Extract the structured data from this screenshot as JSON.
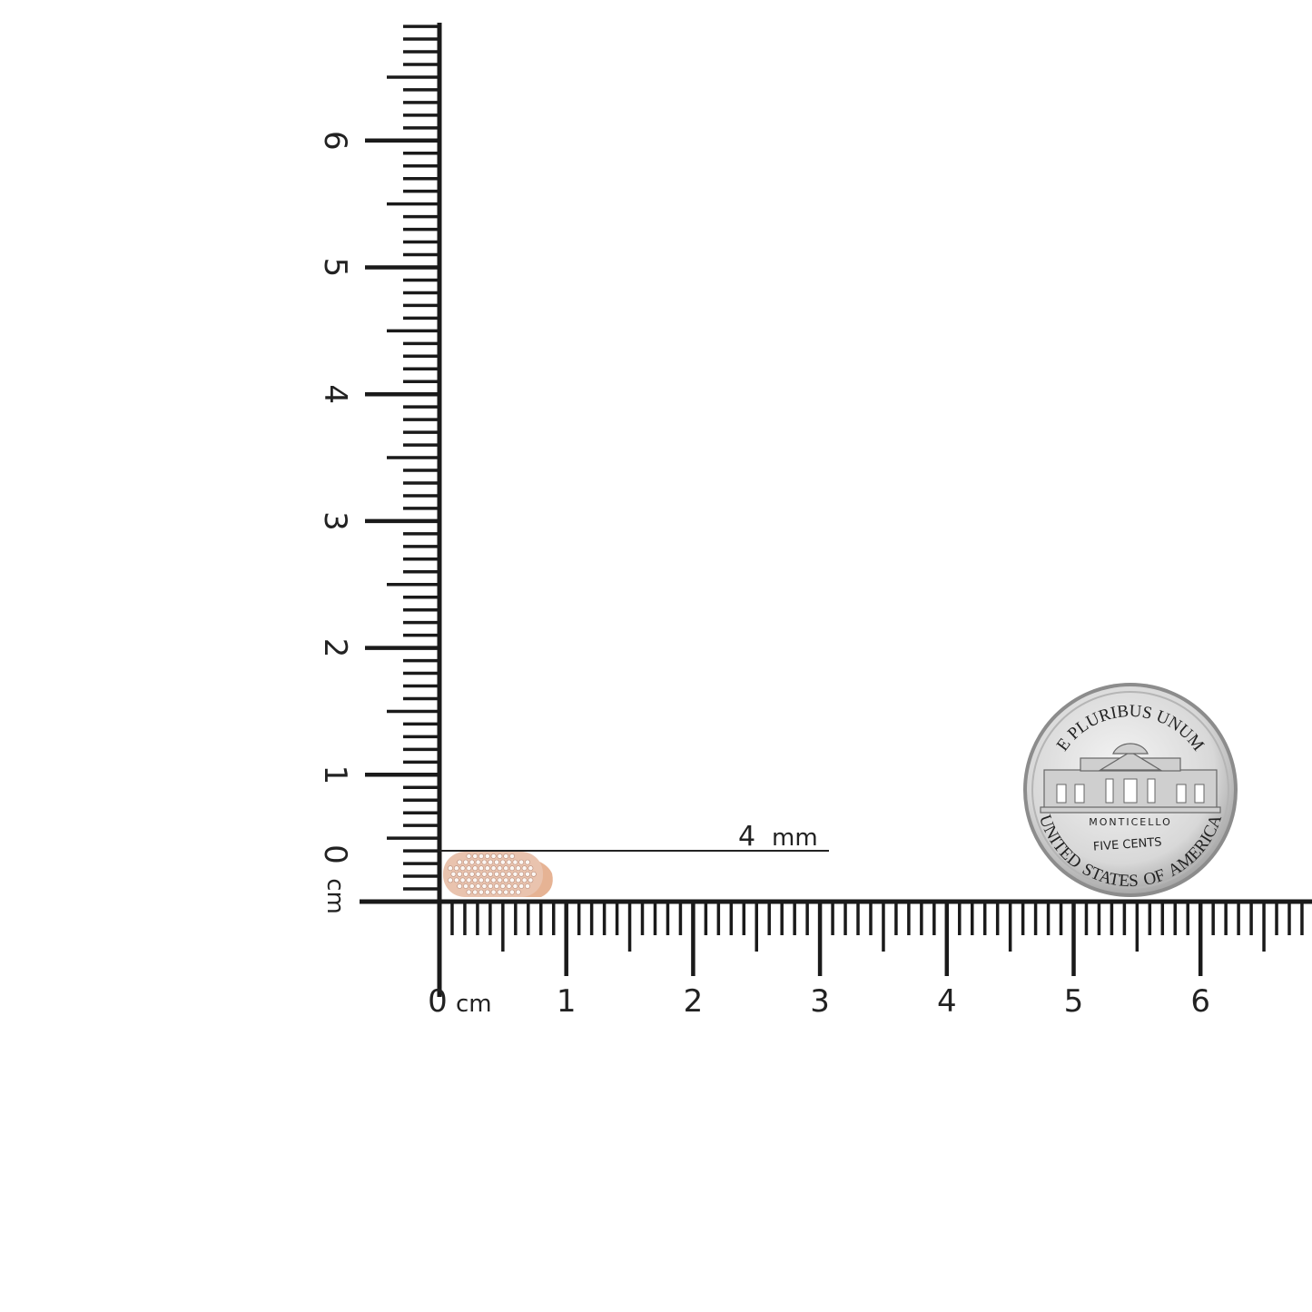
{
  "rulers": {
    "unit_label": "cm",
    "horizontal_labels": [
      "0",
      "1",
      "2",
      "3",
      "4",
      "5",
      "6"
    ],
    "vertical_labels": [
      "0",
      "1",
      "2",
      "3",
      "4",
      "5",
      "6"
    ],
    "ticks_per_cm": 10,
    "color": "#1a1a1a"
  },
  "measurement": {
    "value": "4",
    "unit": "mm"
  },
  "product": {
    "icon": "pave-diamond-ring",
    "metal_color": "#e8b89a"
  },
  "coin": {
    "icon": "us-nickel-reverse",
    "top_text": "E PLURIBUS UNUM",
    "building_text": "MONTICELLO",
    "value_text": "FIVE CENTS",
    "bottom_text": "UNITED STATES OF AMERICA"
  }
}
